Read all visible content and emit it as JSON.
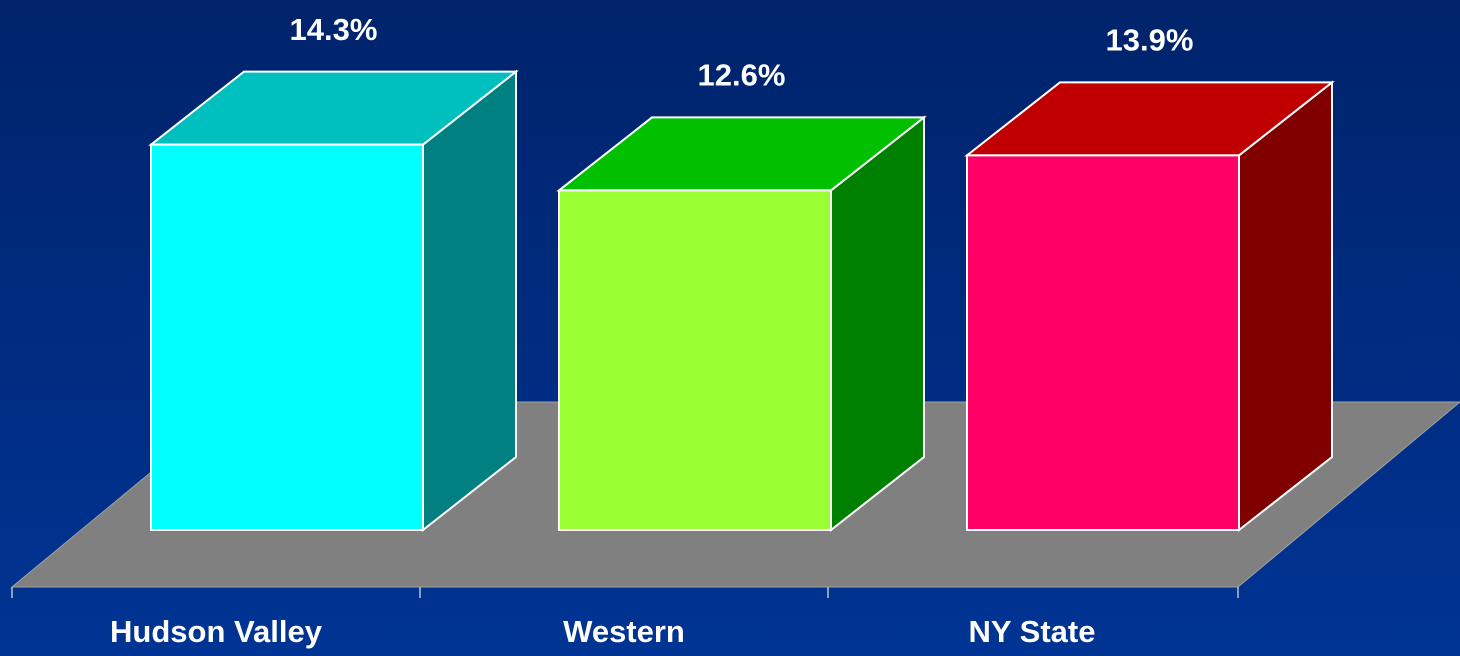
{
  "chart_data": {
    "type": "bar3d",
    "categories": [
      "Hudson Valley",
      "Western",
      "NY State"
    ],
    "values": [
      14.3,
      12.6,
      13.9
    ],
    "value_labels": [
      "14.3%",
      "12.6%",
      "13.9%"
    ],
    "colors": [
      "#00ffff",
      "#99ff33",
      "#ff0066"
    ],
    "top_colors": [
      "#00bfbf",
      "#00c000",
      "#c00000"
    ],
    "side_colors": [
      "#008080",
      "#008000",
      "#800000"
    ]
  }
}
